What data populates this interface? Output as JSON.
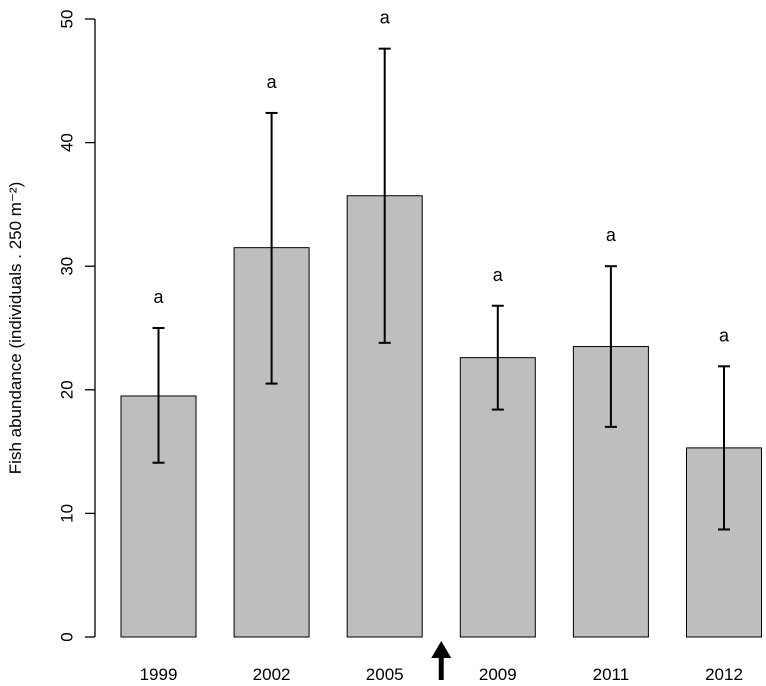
{
  "chart_data": {
    "type": "bar",
    "title": "",
    "xlabel": "",
    "ylabel": "Fish abundance (individuals . 250 m⁻²)",
    "ylim": [
      0,
      50
    ],
    "yticks": [
      0,
      10,
      20,
      30,
      40,
      50
    ],
    "categories": [
      "1999",
      "2002",
      "2005",
      "2009",
      "2011",
      "2012"
    ],
    "values": [
      19.5,
      31.5,
      35.7,
      22.6,
      23.5,
      15.3
    ],
    "error_low": [
      14.1,
      20.5,
      23.8,
      18.4,
      17.0,
      8.7
    ],
    "error_high": [
      25.0,
      42.4,
      47.6,
      26.8,
      30.0,
      21.9
    ],
    "significance_labels": [
      "a",
      "a",
      "a",
      "a",
      "a",
      "a"
    ],
    "bar_color": "#bebebe",
    "annotation": {
      "type": "arrow",
      "between_categories": [
        "2005",
        "2009"
      ]
    },
    "grid": false
  }
}
